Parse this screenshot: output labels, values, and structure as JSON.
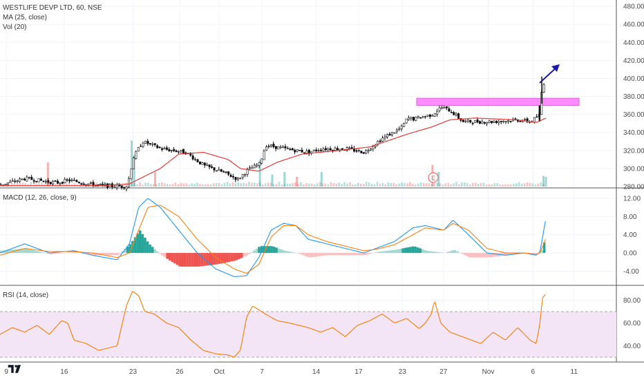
{
  "header": {
    "title": "WESTLIFE DEVP LTD, 60, NSE",
    "ma_label": "MA (25, close)",
    "vol_label": "Vol (20)",
    "macd_label": "MACD (12, 26, close, 9)",
    "rsi_label": "RSI (14, close)"
  },
  "colors": {
    "up": "#26a69a",
    "down": "#ef5350",
    "macd_line": "#2196f3",
    "signal_line": "#ff7f0e",
    "ma_line": "#e53935",
    "rsi_line": "#f57c00",
    "rsi_band": "#f3e5f5",
    "resistance_box": "#ff66ff",
    "arrow": "#1a1aa6"
  },
  "annotations": {
    "earnings_badge": "E"
  },
  "chart_data": [
    {
      "type": "candlestick",
      "name": "price",
      "y_ticks": [
        "480.00",
        "460.00",
        "440.00",
        "420.00",
        "400.00",
        "380.00",
        "360.00",
        "340.00",
        "320.00",
        "300.00",
        "280.00"
      ],
      "ylim": [
        280,
        487
      ],
      "x_ticks": [
        {
          "label": "9",
          "t": 0.0103
        },
        {
          "label": "16",
          "t": 0.1041
        },
        {
          "label": "23",
          "t": 0.2158
        },
        {
          "label": "26",
          "t": 0.2914
        },
        {
          "label": "Oct",
          "t": 0.3557
        },
        {
          "label": "7",
          "t": 0.425
        },
        {
          "label": "14",
          "t": 0.513
        },
        {
          "label": "17",
          "t": 0.5817
        },
        {
          "label": "23",
          "t": 0.6528
        },
        {
          "label": "27",
          "t": 0.7195
        },
        {
          "label": "Nov",
          "t": 0.792
        },
        {
          "label": "6",
          "t": 0.8648
        },
        {
          "label": "11",
          "t": 0.9313
        }
      ],
      "keypoints": [
        [
          0.0,
          282
        ],
        [
          0.04,
          289
        ],
        [
          0.09,
          284
        ],
        [
          0.11,
          287
        ],
        [
          0.16,
          281
        ],
        [
          0.205,
          280
        ],
        [
          0.215,
          312
        ],
        [
          0.23,
          330
        ],
        [
          0.26,
          322
        ],
        [
          0.3,
          318
        ],
        [
          0.33,
          303
        ],
        [
          0.36,
          296
        ],
        [
          0.385,
          288
        ],
        [
          0.4,
          298
        ],
        [
          0.42,
          305
        ],
        [
          0.43,
          326
        ],
        [
          0.46,
          322
        ],
        [
          0.5,
          318
        ],
        [
          0.52,
          322
        ],
        [
          0.56,
          322
        ],
        [
          0.59,
          318
        ],
        [
          0.62,
          334
        ],
        [
          0.65,
          345
        ],
        [
          0.66,
          356
        ],
        [
          0.67,
          355
        ],
        [
          0.7,
          360
        ],
        [
          0.715,
          368
        ],
        [
          0.73,
          364
        ],
        [
          0.75,
          352
        ],
        [
          0.8,
          352
        ],
        [
          0.84,
          354
        ],
        [
          0.86,
          352
        ],
        [
          0.875,
          360
        ],
        [
          0.878,
          392
        ],
        [
          0.885,
          398
        ]
      ],
      "ma_keypoints": [
        [
          0.0,
          281
        ],
        [
          0.17,
          281
        ],
        [
          0.21,
          283
        ],
        [
          0.26,
          300
        ],
        [
          0.29,
          316
        ],
        [
          0.33,
          318
        ],
        [
          0.37,
          310
        ],
        [
          0.39,
          300
        ],
        [
          0.42,
          297
        ],
        [
          0.45,
          307
        ],
        [
          0.49,
          316
        ],
        [
          0.55,
          320
        ],
        [
          0.6,
          324
        ],
        [
          0.66,
          338
        ],
        [
          0.7,
          346
        ],
        [
          0.73,
          354
        ],
        [
          0.77,
          356
        ],
        [
          0.84,
          354
        ],
        [
          0.87,
          351
        ],
        [
          0.886,
          356
        ]
      ],
      "resistance_zone": [
        370,
        378
      ],
      "earnings_marker_t": 0.703
    },
    {
      "type": "bar",
      "name": "volume",
      "spikes": [
        {
          "t": 0.076,
          "v": 0.5,
          "dir": "down"
        },
        {
          "t": 0.212,
          "v": 0.95,
          "dir": "up"
        },
        {
          "t": 0.216,
          "v": 0.65,
          "dir": "up"
        },
        {
          "t": 0.25,
          "v": 0.3,
          "dir": "down"
        },
        {
          "t": 0.42,
          "v": 0.55,
          "dir": "up"
        },
        {
          "t": 0.44,
          "v": 0.25,
          "dir": "up"
        },
        {
          "t": 0.46,
          "v": 0.3,
          "dir": "up"
        },
        {
          "t": 0.48,
          "v": 0.2,
          "dir": "down"
        },
        {
          "t": 0.52,
          "v": 0.3,
          "dir": "up"
        },
        {
          "t": 0.7,
          "v": 0.45,
          "dir": "down"
        },
        {
          "t": 0.71,
          "v": 0.3,
          "dir": "up"
        },
        {
          "t": 0.88,
          "v": 0.22,
          "dir": "up"
        },
        {
          "t": 0.884,
          "v": 0.2,
          "dir": "up"
        }
      ]
    },
    {
      "type": "line",
      "name": "MACD",
      "y_ticks": [
        "12.00",
        "8.00",
        "4.00",
        "0.00",
        "-4.00"
      ],
      "ylim": [
        -6.8,
        13.8
      ],
      "macd_keypoints": [
        [
          0.0,
          0.0
        ],
        [
          0.04,
          2.0
        ],
        [
          0.08,
          0.0
        ],
        [
          0.12,
          0.5
        ],
        [
          0.15,
          -0.5
        ],
        [
          0.19,
          -1.5
        ],
        [
          0.21,
          2.0
        ],
        [
          0.225,
          10.0
        ],
        [
          0.24,
          12.0
        ],
        [
          0.26,
          10.0
        ],
        [
          0.29,
          5.0
        ],
        [
          0.32,
          0.0
        ],
        [
          0.35,
          -3.5
        ],
        [
          0.38,
          -5.2
        ],
        [
          0.4,
          -5.0
        ],
        [
          0.42,
          -1.0
        ],
        [
          0.44,
          5.0
        ],
        [
          0.46,
          6.5
        ],
        [
          0.48,
          6.0
        ],
        [
          0.5,
          3.0
        ],
        [
          0.53,
          2.0
        ],
        [
          0.56,
          1.0
        ],
        [
          0.59,
          0.0
        ],
        [
          0.61,
          1.0
        ],
        [
          0.64,
          2.5
        ],
        [
          0.67,
          5.5
        ],
        [
          0.69,
          6.0
        ],
        [
          0.72,
          5.0
        ],
        [
          0.735,
          7.2
        ],
        [
          0.76,
          4.0
        ],
        [
          0.79,
          0.0
        ],
        [
          0.82,
          -0.5
        ],
        [
          0.85,
          0.0
        ],
        [
          0.87,
          -0.5
        ],
        [
          0.876,
          0.2
        ],
        [
          0.885,
          7.0
        ]
      ],
      "signal_keypoints": [
        [
          0.0,
          -0.5
        ],
        [
          0.04,
          1.0
        ],
        [
          0.08,
          0.3
        ],
        [
          0.12,
          0.3
        ],
        [
          0.15,
          0.0
        ],
        [
          0.19,
          -1.0
        ],
        [
          0.21,
          0.0
        ],
        [
          0.225,
          5.0
        ],
        [
          0.24,
          10.0
        ],
        [
          0.26,
          10.5
        ],
        [
          0.29,
          8.0
        ],
        [
          0.32,
          3.0
        ],
        [
          0.35,
          -1.0
        ],
        [
          0.38,
          -3.5
        ],
        [
          0.4,
          -4.5
        ],
        [
          0.42,
          -2.5
        ],
        [
          0.44,
          3.5
        ],
        [
          0.46,
          6.0
        ],
        [
          0.48,
          6.0
        ],
        [
          0.5,
          4.0
        ],
        [
          0.53,
          2.5
        ],
        [
          0.56,
          1.5
        ],
        [
          0.59,
          0.5
        ],
        [
          0.61,
          0.8
        ],
        [
          0.64,
          1.8
        ],
        [
          0.67,
          4.0
        ],
        [
          0.69,
          5.5
        ],
        [
          0.72,
          5.0
        ],
        [
          0.735,
          6.5
        ],
        [
          0.76,
          5.0
        ],
        [
          0.79,
          1.0
        ],
        [
          0.82,
          0.0
        ],
        [
          0.85,
          0.0
        ],
        [
          0.87,
          -0.3
        ],
        [
          0.876,
          0.0
        ],
        [
          0.885,
          3.0
        ]
      ]
    },
    {
      "type": "line",
      "name": "RSI",
      "y_ticks": [
        "80.00",
        "60.00",
        "40.00"
      ],
      "ylim": [
        26.4,
        91.2
      ],
      "band": [
        30,
        70
      ],
      "keypoints": [
        [
          0.0,
          50
        ],
        [
          0.02,
          56
        ],
        [
          0.04,
          52
        ],
        [
          0.06,
          58
        ],
        [
          0.08,
          50
        ],
        [
          0.1,
          62
        ],
        [
          0.11,
          60
        ],
        [
          0.12,
          45
        ],
        [
          0.14,
          42
        ],
        [
          0.16,
          36
        ],
        [
          0.19,
          40
        ],
        [
          0.205,
          75
        ],
        [
          0.215,
          88
        ],
        [
          0.225,
          84
        ],
        [
          0.235,
          70
        ],
        [
          0.25,
          68
        ],
        [
          0.27,
          60
        ],
        [
          0.29,
          56
        ],
        [
          0.31,
          45
        ],
        [
          0.33,
          36
        ],
        [
          0.35,
          33
        ],
        [
          0.37,
          32
        ],
        [
          0.38,
          30
        ],
        [
          0.39,
          36
        ],
        [
          0.4,
          65
        ],
        [
          0.41,
          75
        ],
        [
          0.43,
          68
        ],
        [
          0.45,
          62
        ],
        [
          0.47,
          60
        ],
        [
          0.5,
          56
        ],
        [
          0.52,
          52
        ],
        [
          0.54,
          56
        ],
        [
          0.56,
          48
        ],
        [
          0.58,
          58
        ],
        [
          0.6,
          62
        ],
        [
          0.62,
          68
        ],
        [
          0.64,
          60
        ],
        [
          0.66,
          64
        ],
        [
          0.68,
          55
        ],
        [
          0.69,
          60
        ],
        [
          0.7,
          68
        ],
        [
          0.705,
          80
        ],
        [
          0.715,
          60
        ],
        [
          0.73,
          52
        ],
        [
          0.75,
          48
        ],
        [
          0.78,
          42
        ],
        [
          0.8,
          52
        ],
        [
          0.82,
          45
        ],
        [
          0.84,
          56
        ],
        [
          0.86,
          45
        ],
        [
          0.87,
          42
        ],
        [
          0.876,
          60
        ],
        [
          0.88,
          82
        ],
        [
          0.885,
          85
        ]
      ]
    }
  ]
}
